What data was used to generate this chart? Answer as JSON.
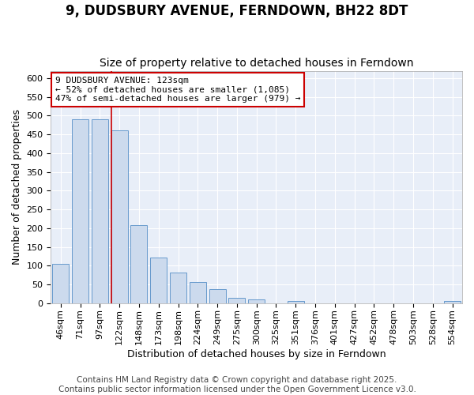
{
  "title": "9, DUDSBURY AVENUE, FERNDOWN, BH22 8DT",
  "subtitle": "Size of property relative to detached houses in Ferndown",
  "xlabel": "Distribution of detached houses by size in Ferndown",
  "ylabel": "Number of detached properties",
  "categories": [
    "46sqm",
    "71sqm",
    "97sqm",
    "122sqm",
    "148sqm",
    "173sqm",
    "198sqm",
    "224sqm",
    "249sqm",
    "275sqm",
    "300sqm",
    "325sqm",
    "351sqm",
    "376sqm",
    "401sqm",
    "427sqm",
    "452sqm",
    "478sqm",
    "503sqm",
    "528sqm",
    "554sqm"
  ],
  "values": [
    105,
    490,
    490,
    460,
    207,
    122,
    82,
    57,
    38,
    15,
    10,
    0,
    5,
    0,
    0,
    0,
    0,
    0,
    0,
    0,
    5
  ],
  "bar_color": "#ccdaed",
  "bar_edge_color": "#6699cc",
  "vline_x_index": 3,
  "vline_color": "#cc0000",
  "annotation_line1": "9 DUDSBURY AVENUE: 123sqm",
  "annotation_line2": "← 52% of detached houses are smaller (1,085)",
  "annotation_line3": "47% of semi-detached houses are larger (979) →",
  "annotation_edge_color": "#cc0000",
  "annotation_fill": "#ffffff",
  "ylim": [
    0,
    620
  ],
  "yticks": [
    0,
    50,
    100,
    150,
    200,
    250,
    300,
    350,
    400,
    450,
    500,
    550,
    600
  ],
  "fig_bg_color": "#ffffff",
  "plot_bg_color": "#e8eef8",
  "grid_color": "#ffffff",
  "title_fontsize": 12,
  "subtitle_fontsize": 10,
  "label_fontsize": 9,
  "tick_fontsize": 8,
  "annot_fontsize": 8,
  "footer_fontsize": 7.5,
  "footer_text": "Contains HM Land Registry data © Crown copyright and database right 2025.\nContains public sector information licensed under the Open Government Licence v3.0."
}
